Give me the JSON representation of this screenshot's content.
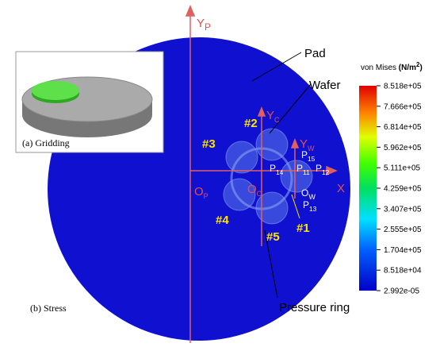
{
  "labels": {
    "pad": "Pad",
    "wafer": "Wafer",
    "pressure_ring": "Pressure ring",
    "x_axis": "X",
    "y_p": {
      "base": "Y",
      "sub": "P"
    },
    "y_c": {
      "base": "Y",
      "sub": "C"
    },
    "y_w": {
      "base": "Y",
      "sub": "W"
    },
    "o_p": {
      "base": "O",
      "sub": "P"
    },
    "o_c": {
      "base": "O",
      "sub": "C"
    },
    "o_w": {
      "base": "O",
      "sub": "W"
    },
    "p11": {
      "base": "P",
      "sub": "11"
    },
    "p12": {
      "base": "P",
      "sub": "12"
    },
    "p13": {
      "base": "P",
      "sub": "13"
    },
    "p14": {
      "base": "P",
      "sub": "14"
    },
    "p15": {
      "base": "P",
      "sub": "15"
    },
    "n1": "#1",
    "n2": "#2",
    "n3": "#3",
    "n4": "#4",
    "n5": "#5"
  },
  "inset_caption": "(a) Gridding",
  "stress_caption": "(b) Stress",
  "colorbar": {
    "title": "von Mises",
    "unit": {
      "base": "(N/m",
      "sup": "2",
      "end": ")"
    },
    "ticks": [
      "8.518e+05",
      "7.666e+05",
      "6.814e+05",
      "5.962e+05",
      "5.111e+05",
      "4.259e+05",
      "3.407e+05",
      "2.555e+05",
      "1.704e+05",
      "8.518e+04",
      "2.992e-05"
    ]
  }
}
